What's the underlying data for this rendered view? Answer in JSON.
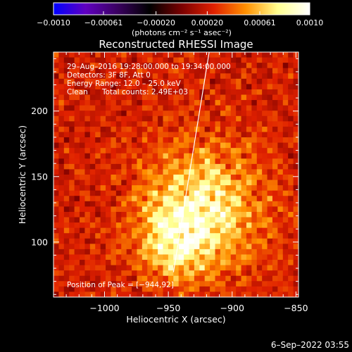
{
  "chart_data": {
    "type": "heatmap",
    "title": "Reconstructed RHESSI Image",
    "xlabel": "Heliocentric X (arcsec)",
    "ylabel": "Heliocentric Y (arcsec)",
    "xlim": [
      -1040,
      -848
    ],
    "ylim": [
      58,
      245
    ],
    "x_ticks": [
      -1000,
      -950,
      -900,
      -850
    ],
    "x_tick_labels": [
      "−1000",
      "−950",
      "−900",
      "−850"
    ],
    "y_ticks": [
      100,
      150,
      200
    ],
    "y_tick_labels": [
      "100",
      "150",
      "200"
    ],
    "colorbar": {
      "range": [
        -0.001,
        0.001
      ],
      "ticks": [
        -0.001,
        -0.00061,
        -0.0002,
        0.0002,
        0.00061,
        0.001
      ],
      "tick_labels": [
        "−0.0010",
        "−0.00061",
        "−0.00020",
        "0.00020",
        "0.00061",
        "0.0010"
      ],
      "unit_label": "(photons cm⁻² s⁻¹ asec⁻²)",
      "colormap": [
        "#0000ff",
        "#6000c0",
        "#3a0060",
        "#000000",
        "#7a0000",
        "#e02000",
        "#ff9000",
        "#ffff90",
        "#ffffff"
      ]
    },
    "annotations": {
      "time_range": "29–Aug–2016 19:28:00.000 to 19:34:00.000",
      "detectors": "Detectors: 3F 8F, Att 0",
      "energy": "Energy Range: 12.0 – 25.0 keV",
      "clean_method": "Clean",
      "total_counts": "Total counts: 2.49E+03",
      "peak": "Position of Peak = [−944,92]"
    },
    "peak_position": [
      -944,
      92
    ],
    "limb_line": {
      "x": [
        -946,
        -918
      ],
      "y": [
        77,
        245
      ]
    },
    "map": {
      "grid_nx": 47,
      "grid_ny": 46,
      "background_level": 0.22,
      "sources": [
        {
          "x": -925,
          "y": 125,
          "amplitude": 0.95,
          "sigma_x": 32,
          "sigma_y": 32
        },
        {
          "x": -945,
          "y": 98,
          "amplitude": 0.55,
          "sigma_x": 18,
          "sigma_y": 18
        }
      ]
    }
  },
  "footer": {
    "date": "6–Sep–2022 03:55"
  },
  "colors": {
    "background": "#000000",
    "text": "#ffffff",
    "limb_line": "#ffffff"
  }
}
